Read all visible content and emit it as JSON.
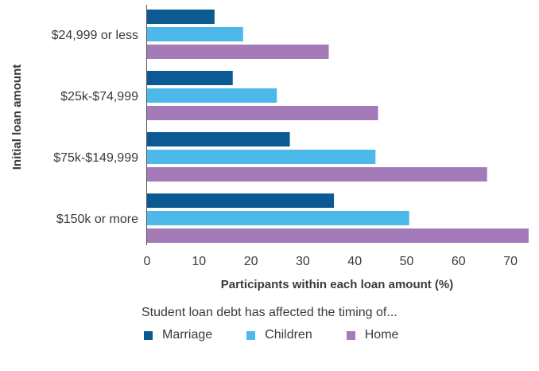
{
  "chart_data": {
    "type": "bar",
    "orientation": "horizontal",
    "categories": [
      "$24,999 or less",
      "$25k-$74,999",
      "$75k-$149,999",
      "$150k or more"
    ],
    "series": [
      {
        "name": "Marriage",
        "color": "#0b5a94",
        "values": [
          13,
          16.5,
          27.5,
          36
        ]
      },
      {
        "name": "Children",
        "color": "#4db8ea",
        "values": [
          18.5,
          25,
          44,
          50.5
        ]
      },
      {
        "name": "Home",
        "color": "#a57ab8",
        "values": [
          35,
          44.5,
          65.5,
          73.5
        ]
      }
    ],
    "xlabel": "Participants within each loan amount (%)",
    "ylabel": "Initial loan amount",
    "xlim": [
      0,
      74
    ],
    "xticks": [
      "0",
      "10",
      "20",
      "30",
      "40",
      "50",
      "60",
      "70"
    ],
    "grid": false,
    "legend_title": "Student loan debt has affected the timing of...",
    "legend_position": "bottom"
  }
}
